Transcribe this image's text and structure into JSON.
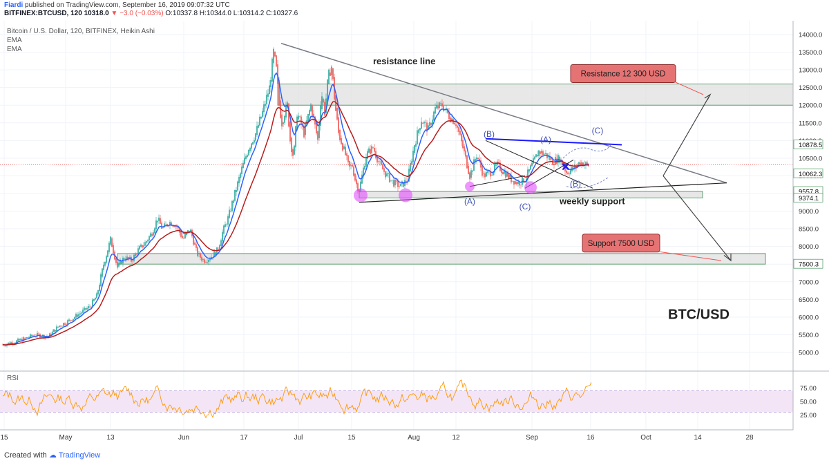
{
  "header": {
    "author": "Fiardi",
    "published": "published on TradingView.com, September 16, 2019 09:07:32 UTC",
    "symbol_line": "BITFINEX:BTCUSD, 120",
    "last": "10318.0",
    "change_arrow": "▼",
    "change": "−3.0 (−0.03%)",
    "ohlc": "O:10337.8 H:10344.0 L:10314.2 C:10327.6"
  },
  "legend": {
    "title": "Bitcoin / U.S. Dollar, 120, BITFINEX, Heikin Ashi",
    "indicators": [
      "EMA",
      "EMA"
    ]
  },
  "footer": {
    "created_with": "Created with",
    "brand": "TradingView"
  },
  "colors": {
    "up_candle": "#26a69a",
    "down_candle": "#ef5350",
    "ema_fast": "#2962ff",
    "ema_slow": "#b71c1c",
    "zone_fill": "#e0e0e0",
    "zone_border": "#5d9e6f",
    "rsi": "#ff9800",
    "rsi_band": "#f3e5f5",
    "callout_fill": "#e57373",
    "marker_fill": "#e040fb",
    "trend_gray": "#787b86",
    "trend_blue": "#1a1aff"
  },
  "chart_data": [
    {
      "type": "line",
      "subtype": "candlestick-heikin-ashi",
      "title": "Bitcoin / U.S. Dollar, 120, BITFINEX, Heikin Ashi",
      "x_ticks": [
        "15",
        "May",
        "13",
        "Jun",
        "17",
        "Jul",
        "15",
        "Aug",
        "12",
        "Sep",
        "16",
        "Oct",
        "14",
        "28"
      ],
      "y_ticks": [
        5000,
        5500,
        6000,
        6500,
        7000,
        7500,
        8000,
        8500,
        9000,
        9500,
        10000,
        10500,
        11000,
        11500,
        12000,
        12500,
        13000,
        13500,
        14000
      ],
      "ylim": [
        4550,
        14200
      ],
      "price_path": {
        "x": [
          0,
          30,
          50,
          70,
          85,
          100,
          115,
          130,
          140,
          150,
          160,
          170,
          180,
          190,
          200,
          210,
          220,
          228,
          235,
          245,
          255,
          265,
          275,
          285,
          295,
          305,
          315,
          322,
          330,
          340,
          350,
          360,
          370,
          380,
          390,
          396,
          400,
          404,
          408,
          412,
          416,
          420,
          425,
          430,
          435,
          440,
          445,
          450,
          455,
          460,
          465,
          470,
          475,
          480,
          485,
          490,
          495,
          500,
          505,
          510,
          515,
          520,
          525,
          530,
          540,
          550,
          560,
          570,
          580,
          590,
          600,
          610,
          620,
          630,
          640,
          650,
          660,
          670,
          680,
          690,
          700,
          710,
          720,
          730,
          740,
          750,
          760,
          770,
          780,
          790,
          800,
          810,
          820,
          830,
          840,
          850
        ],
        "y": [
          5200,
          5350,
          5500,
          5450,
          5750,
          5900,
          6100,
          6300,
          6600,
          7500,
          8200,
          7400,
          7700,
          7600,
          7900,
          8100,
          8400,
          8800,
          8500,
          8700,
          8600,
          8200,
          8500,
          7800,
          7600,
          7700,
          7900,
          8400,
          8800,
          9500,
          10200,
          10800,
          11200,
          11800,
          12500,
          13500,
          13000,
          12000,
          11500,
          11800,
          12000,
          11000,
          10500,
          11800,
          11500,
          11200,
          11600,
          12000,
          11500,
          11000,
          12400,
          11800,
          12800,
          13100,
          12000,
          11200,
          10900,
          10600,
          10200,
          10300,
          9800,
          9600,
          10100,
          10600,
          10800,
          10300,
          10000,
          9800,
          9700,
          9900,
          10900,
          11600,
          11300,
          11900,
          12000,
          11700,
          11500,
          10800,
          10000,
          10600,
          10000,
          10100,
          10300,
          10100,
          9900,
          9800,
          9900,
          10300,
          10700,
          10600,
          10400,
          10500,
          10100,
          10200,
          10400,
          10300
        ]
      },
      "price_labels": [
        10878.5,
        10062.3,
        9557.8,
        9374.1,
        7500.3
      ],
      "zones": [
        {
          "from": 12000,
          "to": 12600
        },
        {
          "from": 9374.1,
          "to": 9557.8
        },
        {
          "from": 7500.3,
          "to": 7800
        }
      ],
      "annotations": {
        "resistance_line": "resistance line",
        "weekly_support": "weekly support",
        "resistance_callout": "Resistance 12 300 USD",
        "support_callout": "Support 7500 USD",
        "pair_label": "BTC/USD",
        "wave_labels": [
          "(B)",
          "(A)",
          "(C)",
          "(A)",
          "(C)",
          "(B)",
          "(C)"
        ]
      }
    },
    {
      "type": "line",
      "title": "RSI",
      "y_ticks": [
        25,
        50,
        75
      ],
      "ylim": [
        5,
        100
      ],
      "band": [
        30,
        70
      ]
    }
  ]
}
